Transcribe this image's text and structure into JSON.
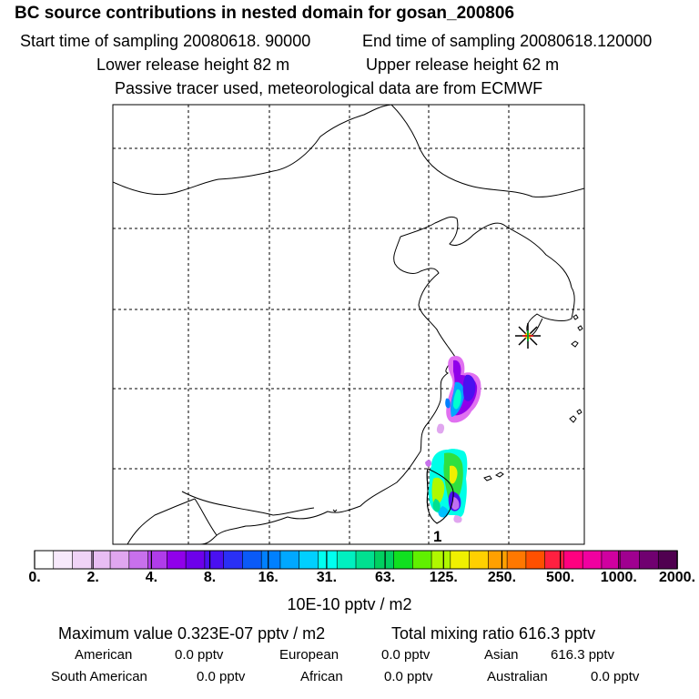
{
  "header": {
    "title": "BC  source contributions in nested domain for gosan_200806",
    "start_label": "Start time of sampling 20080618. 90000",
    "end_label": "End time of sampling 20080618.120000",
    "lower_label": "Lower release height   82 m",
    "upper_label": "Upper release height   62 m",
    "tracer_note": "Passive tracer used, meteorological data are from ECMWF"
  },
  "map": {
    "marker_label": "1",
    "station_icon": "station-star-icon"
  },
  "colors": {
    "levels": [
      "#ffffff",
      "#f7e9fb",
      "#f0d3f7",
      "#e8bdf3",
      "#e0a6ef",
      "#c870ec",
      "#b03cea",
      "#9000ea",
      "#6d00ea",
      "#4a10f0",
      "#2a30f5",
      "#0a5af8",
      "#0080ff",
      "#00a8ff",
      "#00d0ff",
      "#00fff0",
      "#00f0c0",
      "#00e090",
      "#00d060",
      "#10e020",
      "#60f000",
      "#b0f800",
      "#f0f000",
      "#ffd000",
      "#ffa000",
      "#ff7800",
      "#ff5000",
      "#ff2040",
      "#ff0080",
      "#f000a0",
      "#d000a0",
      "#a00090",
      "#700070",
      "#500050"
    ]
  },
  "chart_data": {
    "type": "heatmap",
    "title": "BC  source contributions in nested domain for gosan_200806",
    "colorbar_ticks": [
      "0.",
      "2.",
      "4.",
      "8.",
      "16.",
      "31.",
      "63.",
      "125.",
      "250.",
      "500.",
      "1000.",
      "2000."
    ],
    "colorbar_unit": "10E-10 pptv / m2",
    "levels_per_interval": 3
  },
  "stats": {
    "max_label": "Maximum value  0.323E-07 pptv / m2",
    "total_label": "Total mixing ratio      616.3 pptv",
    "regions": [
      {
        "name": "American",
        "value": "0.0 pptv"
      },
      {
        "name": "European",
        "value": "0.0 pptv"
      },
      {
        "name": "Asian",
        "value": "616.3 pptv"
      },
      {
        "name": "South American",
        "value": "0.0 pptv"
      },
      {
        "name": "African",
        "value": "0.0 pptv"
      },
      {
        "name": "Australian",
        "value": "0.0 pptv"
      }
    ]
  }
}
